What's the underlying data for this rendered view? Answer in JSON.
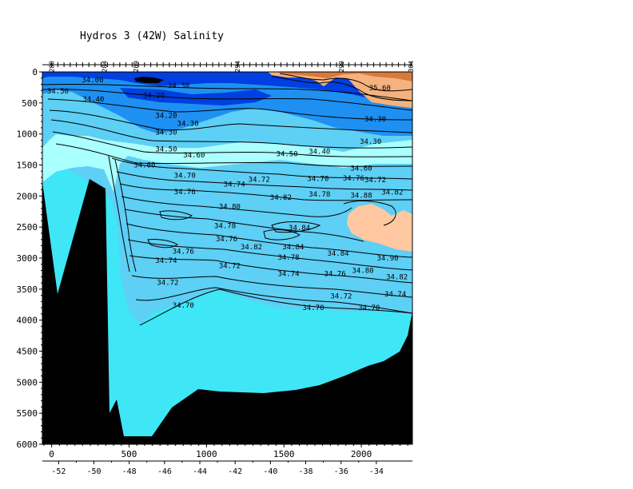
{
  "chart_data": {
    "type": "contour",
    "title": "Hydros 3 (42W) Salinity",
    "xlabel": "",
    "ylabel": "",
    "xlim": [
      -60,
      2330
    ],
    "ylim": [
      6000,
      0
    ],
    "x_ticks": [
      "0",
      "500",
      "1000",
      "1500",
      "2000"
    ],
    "x_tick_values": [
      0,
      500,
      1000,
      1500,
      2000
    ],
    "y_ticks": [
      "0",
      "500",
      "1000",
      "1500",
      "2000",
      "2500",
      "3000",
      "3500",
      "4000",
      "4500",
      "5000",
      "5500",
      "6000"
    ],
    "y_tick_values": [
      0,
      500,
      1000,
      1500,
      2000,
      2500,
      3000,
      3500,
      4000,
      4500,
      5000,
      5500,
      6000
    ],
    "lon_ticks": [
      "-52",
      "-50",
      "-48",
      "-46",
      "-44",
      "-42",
      "-40",
      "-38",
      "-36",
      "-34"
    ],
    "lon_tick_x": [
      45,
      273,
      501,
      729,
      957,
      1185,
      1413,
      1641,
      1869,
      2097
    ],
    "stations": [
      {
        "label": "280",
        "x": 0
      },
      {
        "label": "284",
        "x": 340
      },
      {
        "label": "289",
        "x": 545
      },
      {
        "label": "294",
        "x": 1200
      },
      {
        "label": "299",
        "x": 1870
      },
      {
        "label": "304",
        "x": 2320
      }
    ],
    "contour_labels": [
      {
        "text": "34.00",
        "x": 265,
        "z": 130
      },
      {
        "text": "34.50",
        "x": 40,
        "z": 310
      },
      {
        "text": "34.40",
        "x": 270,
        "z": 440
      },
      {
        "text": "34.20",
        "x": 660,
        "z": 380
      },
      {
        "text": "34.30",
        "x": 820,
        "z": 220
      },
      {
        "text": "34.20",
        "x": 740,
        "z": 700
      },
      {
        "text": "34.30",
        "x": 880,
        "z": 830
      },
      {
        "text": "34.30",
        "x": 740,
        "z": 970
      },
      {
        "text": "34.50",
        "x": 740,
        "z": 1240
      },
      {
        "text": "34.60",
        "x": 920,
        "z": 1340
      },
      {
        "text": "34.60",
        "x": 600,
        "z": 1500
      },
      {
        "text": "34.70",
        "x": 860,
        "z": 1670
      },
      {
        "text": "34.76",
        "x": 860,
        "z": 1930
      },
      {
        "text": "34.74",
        "x": 1180,
        "z": 1810
      },
      {
        "text": "34.72",
        "x": 1340,
        "z": 1730
      },
      {
        "text": "34.82",
        "x": 1480,
        "z": 2020
      },
      {
        "text": "34.80",
        "x": 1150,
        "z": 2170
      },
      {
        "text": "34.78",
        "x": 1120,
        "z": 2480
      },
      {
        "text": "34.76",
        "x": 1130,
        "z": 2690
      },
      {
        "text": "34.76",
        "x": 850,
        "z": 2890
      },
      {
        "text": "34.74",
        "x": 740,
        "z": 3040
      },
      {
        "text": "34.72",
        "x": 1150,
        "z": 3120
      },
      {
        "text": "34.72",
        "x": 750,
        "z": 3390
      },
      {
        "text": "34.70",
        "x": 850,
        "z": 3760
      },
      {
        "text": "34.82",
        "x": 1290,
        "z": 2820
      },
      {
        "text": "34.84",
        "x": 1560,
        "z": 2820
      },
      {
        "text": "34.84",
        "x": 1600,
        "z": 2510
      },
      {
        "text": "34.78",
        "x": 1530,
        "z": 2990
      },
      {
        "text": "34.74",
        "x": 1530,
        "z": 3250
      },
      {
        "text": "34.50",
        "x": 1520,
        "z": 1320
      },
      {
        "text": "34.40",
        "x": 1730,
        "z": 1280
      },
      {
        "text": "34.70",
        "x": 1720,
        "z": 1720
      },
      {
        "text": "34.78",
        "x": 1730,
        "z": 1970
      },
      {
        "text": "34.76",
        "x": 1950,
        "z": 1710
      },
      {
        "text": "34.72",
        "x": 2090,
        "z": 1740
      },
      {
        "text": "34.88",
        "x": 2000,
        "z": 1990
      },
      {
        "text": "34.82",
        "x": 2200,
        "z": 1940
      },
      {
        "text": "34.60",
        "x": 2000,
        "z": 1550
      },
      {
        "text": "34.30",
        "x": 2060,
        "z": 1120
      },
      {
        "text": "34.30",
        "x": 2090,
        "z": 760
      },
      {
        "text": "35.60",
        "x": 2120,
        "z": 260
      },
      {
        "text": "34.84",
        "x": 1850,
        "z": 2920
      },
      {
        "text": "34.90",
        "x": 2170,
        "z": 3000
      },
      {
        "text": "34.80",
        "x": 2010,
        "z": 3200
      },
      {
        "text": "34.76",
        "x": 1830,
        "z": 3250
      },
      {
        "text": "34.82",
        "x": 2230,
        "z": 3300
      },
      {
        "text": "34.74",
        "x": 2220,
        "z": 3580
      },
      {
        "text": "34.72",
        "x": 1870,
        "z": 3610
      },
      {
        "text": "34.70",
        "x": 1690,
        "z": 3800
      },
      {
        "text": "34.70",
        "x": 2050,
        "z": 3800
      }
    ],
    "colors": {
      "deep_water": "#3fe6f6",
      "intermediate": "#5ecff5",
      "light_band": "#aaffff",
      "fresh_band": "#1e90f2",
      "freshest": "#0040e0",
      "salty_orange": "#f6b27e",
      "salty_dark": "#d67a3c",
      "salty_patch": "#ffc8a0",
      "bathymetry": "#000000",
      "contour_line": "#000000"
    }
  }
}
